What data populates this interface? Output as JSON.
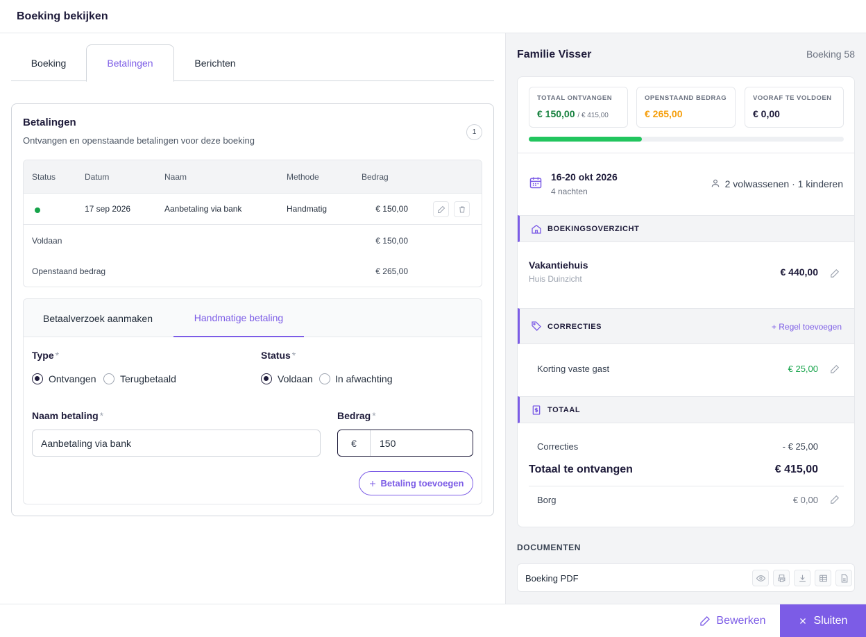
{
  "header": {
    "title": "Boeking bekijken"
  },
  "tabs": [
    {
      "label": "Boeking"
    },
    {
      "label": "Betalingen"
    },
    {
      "label": "Berichten"
    }
  ],
  "payments": {
    "title": "Betalingen",
    "subtitle": "Ontvangen en openstaande betalingen voor deze boeking",
    "count": "1",
    "columns": [
      "Status",
      "Datum",
      "Naam",
      "Methode",
      "Bedrag"
    ],
    "rows": [
      {
        "status": "paid",
        "date": "17 sep 2026",
        "name": "Aanbetaling via bank",
        "method": "Handmatig",
        "amount": "€ 150,00"
      }
    ],
    "paid_label": "Voldaan",
    "paid_value": "€ 150,00",
    "open_label": "Openstaand bedrag",
    "open_value": "€ 265,00"
  },
  "form": {
    "tabs": [
      "Betaalverzoek aanmaken",
      "Handmatige betaling"
    ],
    "type_label": "Type",
    "type_options": [
      "Ontvangen",
      "Terugbetaald"
    ],
    "status_label": "Status",
    "status_options": [
      "Voldaan",
      "In afwachting"
    ],
    "required": "*",
    "name_label": "Naam betaling",
    "name_value": "Aanbetaling via bank",
    "amount_label": "Bedrag",
    "currency": "€",
    "amount_value": "150",
    "add_button": "Betaling toevoegen"
  },
  "summary": {
    "guest": "Familie Visser",
    "booking_no": "Boeking 58",
    "stats": [
      {
        "label": "TOTAAL ONTVANGEN",
        "value": "€ 150,00",
        "extra": "/ € 415,00",
        "color": "#15803d"
      },
      {
        "label": "OPENSTAAND BEDRAG",
        "value": "€ 265,00",
        "extra": "",
        "color": "#f59e0b"
      },
      {
        "label": "VOORAF TE VOLDOEN",
        "value": "€ 0,00",
        "extra": "",
        "color": "#1e1b3a"
      }
    ],
    "progress_fraction": 0.36,
    "dates": "16-20 okt 2026",
    "nights": "4 nachten",
    "guests": "2 volwassenen · 1 kinderen",
    "overview_title": "BOEKINGSOVERZICHT",
    "accommodation": "Vakantiehuis",
    "accommodation_name": "Huis Duinzicht",
    "accommodation_price": "€ 440,00",
    "corrections_title": "CORRECTIES",
    "add_line": "+ Regel toevoegen",
    "correction_name": "Korting vaste gast",
    "correction_value": "€ 25,00",
    "total_title": "TOTAAL",
    "corrections_label": "Correcties",
    "corrections_total": "- € 25,00",
    "total_label": "Totaal te ontvangen",
    "total_value": "€ 415,00",
    "deposit_label": "Borg",
    "deposit_value": "€ 0,00"
  },
  "documents": {
    "title": "DOCUMENTEN",
    "item": "Boeking PDF"
  },
  "footer": {
    "edit": "Bewerken",
    "close": "Sluiten"
  },
  "colors": {
    "accent": "#7c5ce6",
    "success": "#22c55e",
    "warning": "#f59e0b"
  }
}
